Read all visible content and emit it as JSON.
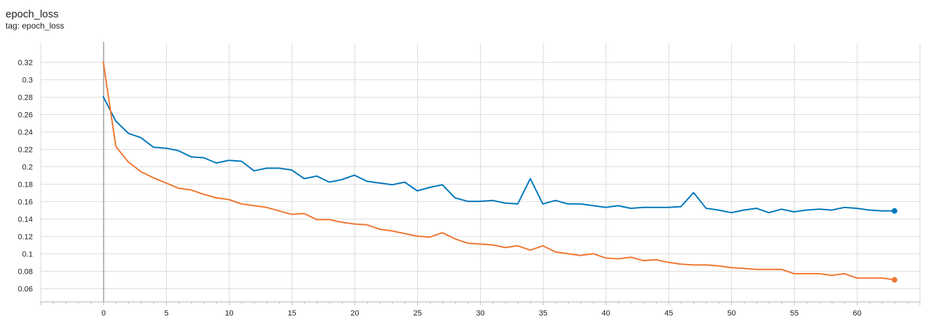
{
  "header": {
    "title": "epoch_loss",
    "tag": "tag: epoch_loss"
  },
  "chart_data": {
    "type": "line",
    "title": "epoch_loss",
    "xlabel": "",
    "ylabel": "",
    "xlim": [
      -5,
      65
    ],
    "ylim": [
      0.045,
      0.335
    ],
    "xticks": [
      0,
      5,
      10,
      15,
      20,
      25,
      30,
      35,
      40,
      45,
      50,
      55,
      60
    ],
    "yticks": [
      0.06,
      0.08,
      0.1,
      0.12,
      0.14,
      0.16,
      0.18,
      0.2,
      0.22,
      0.24,
      0.26,
      0.28,
      0.3,
      0.32
    ],
    "grid": true,
    "legend": "none",
    "series": [
      {
        "color": "#0077bb",
        "x": [
          0,
          1,
          2,
          3,
          4,
          5,
          6,
          7,
          8,
          9,
          10,
          11,
          12,
          13,
          14,
          15,
          16,
          17,
          18,
          19,
          20,
          21,
          22,
          23,
          24,
          25,
          26,
          27,
          28,
          29,
          30,
          31,
          32,
          33,
          34,
          35,
          36,
          37,
          38,
          39,
          40,
          41,
          42,
          43,
          44,
          45,
          46,
          47,
          48,
          49,
          50,
          51,
          52,
          53,
          54,
          55,
          56,
          57,
          58,
          59,
          60,
          61,
          62,
          63
        ],
        "values": [
          0.28,
          0.252,
          0.238,
          0.233,
          0.222,
          0.221,
          0.218,
          0.211,
          0.21,
          0.204,
          0.207,
          0.206,
          0.195,
          0.198,
          0.198,
          0.196,
          0.186,
          0.189,
          0.182,
          0.185,
          0.19,
          0.183,
          0.181,
          0.179,
          0.182,
          0.172,
          0.176,
          0.179,
          0.164,
          0.16,
          0.16,
          0.161,
          0.158,
          0.157,
          0.186,
          0.157,
          0.161,
          0.157,
          0.157,
          0.155,
          0.153,
          0.155,
          0.152,
          0.153,
          0.153,
          0.153,
          0.154,
          0.17,
          0.152,
          0.15,
          0.147,
          0.15,
          0.152,
          0.147,
          0.151,
          0.148,
          0.15,
          0.151,
          0.15,
          0.153,
          0.152,
          0.15,
          0.149,
          0.149
        ]
      },
      {
        "color": "#ee7733",
        "x": [
          0,
          1,
          2,
          3,
          4,
          5,
          6,
          7,
          8,
          9,
          10,
          11,
          12,
          13,
          14,
          15,
          16,
          17,
          18,
          19,
          20,
          21,
          22,
          23,
          24,
          25,
          26,
          27,
          28,
          29,
          30,
          31,
          32,
          33,
          34,
          35,
          36,
          37,
          38,
          39,
          40,
          41,
          42,
          43,
          44,
          45,
          46,
          47,
          48,
          49,
          50,
          51,
          52,
          53,
          54,
          55,
          56,
          57,
          58,
          59,
          60,
          61,
          62,
          63
        ],
        "values": [
          0.32,
          0.223,
          0.205,
          0.194,
          0.187,
          0.181,
          0.175,
          0.173,
          0.168,
          0.164,
          0.162,
          0.157,
          0.155,
          0.153,
          0.149,
          0.145,
          0.146,
          0.139,
          0.139,
          0.136,
          0.134,
          0.133,
          0.128,
          0.126,
          0.123,
          0.12,
          0.119,
          0.124,
          0.117,
          0.112,
          0.111,
          0.11,
          0.107,
          0.109,
          0.104,
          0.109,
          0.102,
          0.1,
          0.098,
          0.1,
          0.095,
          0.094,
          0.096,
          0.092,
          0.093,
          0.09,
          0.088,
          0.087,
          0.087,
          0.086,
          0.084,
          0.083,
          0.082,
          0.082,
          0.082,
          0.077,
          0.077,
          0.077,
          0.075,
          0.077,
          0.072,
          0.072,
          0.072,
          0.07
        ]
      }
    ]
  }
}
